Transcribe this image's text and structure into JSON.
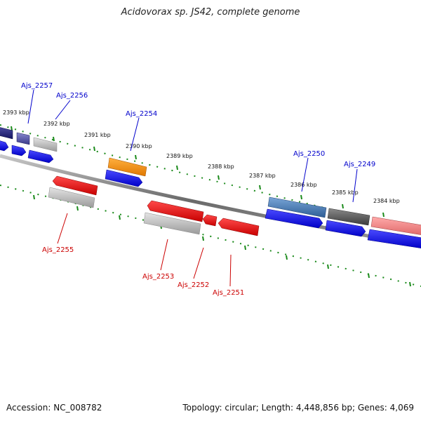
{
  "header": {
    "title": "Acidovorax sp. JS42, complete genome"
  },
  "footer": {
    "accession": "Accession: NC_008782",
    "summary": "Topology: circular; Length: 4,448,856 bp; Genes: 4,069"
  },
  "colors": {
    "forward_label": "#0000cc",
    "reverse_label": "#cc0000",
    "tick": "#1a8a1a",
    "backbone": "#777777"
  },
  "ticks": [
    {
      "label": "2393 kbp"
    },
    {
      "label": "2392 kbp"
    },
    {
      "label": "2391 kbp"
    },
    {
      "label": "2390 kbp"
    },
    {
      "label": "2389 kbp"
    },
    {
      "label": "2388 kbp"
    },
    {
      "label": "2387 kbp"
    },
    {
      "label": "2386 kbp"
    },
    {
      "label": "2385 kbp"
    },
    {
      "label": "2384 kbp"
    }
  ],
  "genes": [
    {
      "id": "Ajs_2257",
      "strand": "forward"
    },
    {
      "id": "Ajs_2256",
      "strand": "forward"
    },
    {
      "id": "Ajs_2254",
      "strand": "forward"
    },
    {
      "id": "Ajs_2250",
      "strand": "forward"
    },
    {
      "id": "Ajs_2249",
      "strand": "forward"
    },
    {
      "id": "Ajs_2255",
      "strand": "reverse"
    },
    {
      "id": "Ajs_2253",
      "strand": "reverse"
    },
    {
      "id": "Ajs_2252",
      "strand": "reverse"
    },
    {
      "id": "Ajs_2251",
      "strand": "reverse"
    }
  ]
}
